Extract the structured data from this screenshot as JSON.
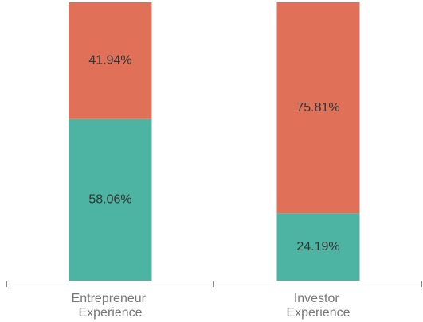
{
  "chart_data": {
    "type": "bar",
    "stacked": true,
    "categories": [
      "Entrepreneur Experience",
      "Investor Experience"
    ],
    "series": [
      {
        "color": "#4db3a2",
        "values": [
          58.06,
          24.19
        ],
        "value_labels": [
          "58.06%",
          "24.19%"
        ]
      },
      {
        "color": "#e07058",
        "values": [
          41.94,
          75.81
        ],
        "value_labels": [
          "41.94%",
          "75.81%"
        ]
      }
    ],
    "ylim": [
      0,
      100
    ]
  }
}
